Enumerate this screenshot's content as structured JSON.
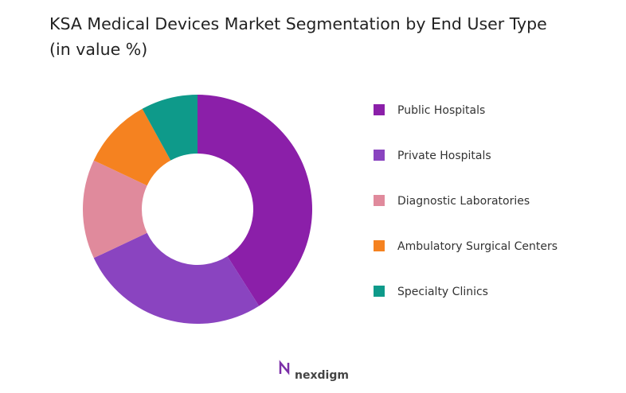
{
  "chart_data": {
    "type": "pie",
    "title": "KSA Medical Devices Market Segmentation by End User Type (in value %)",
    "categories": [
      "Public Hospitals",
      "Private Hospitals",
      "Diagnostic Laboratories",
      "Ambulatory Surgical Centers",
      "Specialty Clinics"
    ],
    "values": [
      41,
      27,
      14,
      10,
      8
    ],
    "colors": [
      "#8b1fa9",
      "#8a44c0",
      "#e08a9c",
      "#f58220",
      "#0e9a8a"
    ],
    "legend": "right"
  },
  "footer": {
    "brand": "nexdigm"
  }
}
